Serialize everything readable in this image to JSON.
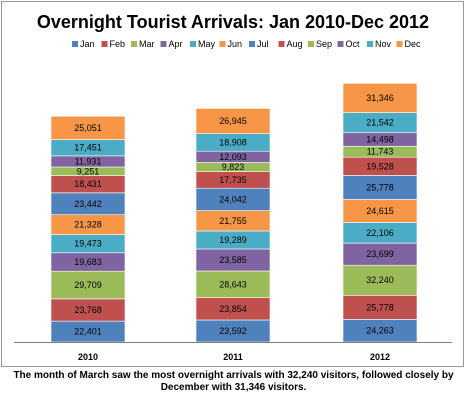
{
  "chart_data": {
    "type": "bar",
    "stacked": true,
    "title": "Overnight Tourist Arrivals: Jan 2010-Dec 2012",
    "xlabel": "",
    "ylabel": "",
    "legend_position": "top",
    "grid": false,
    "categories": [
      "2010",
      "2011",
      "2012"
    ],
    "series": [
      {
        "name": "Jan",
        "color": "#4f81bd",
        "values": [
          22401,
          23592,
          24263
        ],
        "labels": [
          "22,401",
          "23,592",
          "24,263"
        ]
      },
      {
        "name": "Feb",
        "color": "#c0504d",
        "values": [
          23768,
          23854,
          25778
        ],
        "labels": [
          "23,768",
          "23,854",
          "25,778"
        ]
      },
      {
        "name": "Mar",
        "color": "#9bbb59",
        "values": [
          29709,
          28643,
          32240
        ],
        "labels": [
          "29,709",
          "28,643",
          "32,240"
        ]
      },
      {
        "name": "Apr",
        "color": "#8064a2",
        "values": [
          19683,
          23585,
          23699
        ],
        "labels": [
          "19,683",
          "23,585",
          "23,699"
        ]
      },
      {
        "name": "May",
        "color": "#4bacc6",
        "values": [
          19473,
          19289,
          22106
        ],
        "labels": [
          "19,473",
          "19,289",
          "22,106"
        ]
      },
      {
        "name": "Jun",
        "color": "#f79646",
        "values": [
          21328,
          21755,
          24615
        ],
        "labels": [
          "21,328",
          "21,755",
          "24,615"
        ]
      },
      {
        "name": "Jul",
        "color": "#4f81bd",
        "values": [
          23442,
          24042,
          25778
        ],
        "labels": [
          "23,442",
          "24,042",
          "25,778"
        ]
      },
      {
        "name": "Aug",
        "color": "#c0504d",
        "values": [
          18431,
          17735,
          19528
        ],
        "labels": [
          "18,431",
          "17,735",
          "19,528"
        ]
      },
      {
        "name": "Sep",
        "color": "#9bbb59",
        "values": [
          9251,
          9823,
          11743
        ],
        "labels": [
          "9,251",
          "9,823",
          "11,743"
        ]
      },
      {
        "name": "Oct",
        "color": "#8064a2",
        "values": [
          11931,
          12093,
          14498
        ],
        "labels": [
          "11,931",
          "12,093",
          "14,498"
        ]
      },
      {
        "name": "Nov",
        "color": "#4bacc6",
        "values": [
          17451,
          18908,
          21542
        ],
        "labels": [
          "17,451",
          "18,908",
          "21,542"
        ]
      },
      {
        "name": "Dec",
        "color": "#f79646",
        "values": [
          25051,
          26945,
          31346
        ],
        "labels": [
          "25,051",
          "26,945",
          "31,346"
        ]
      }
    ],
    "ylim": [
      0,
      300000
    ]
  },
  "caption": {
    "line1": "The month of March saw the most overnight arrivals with 32,240 visitors, followed closely by",
    "line2": "December with 31,346 visitors."
  }
}
